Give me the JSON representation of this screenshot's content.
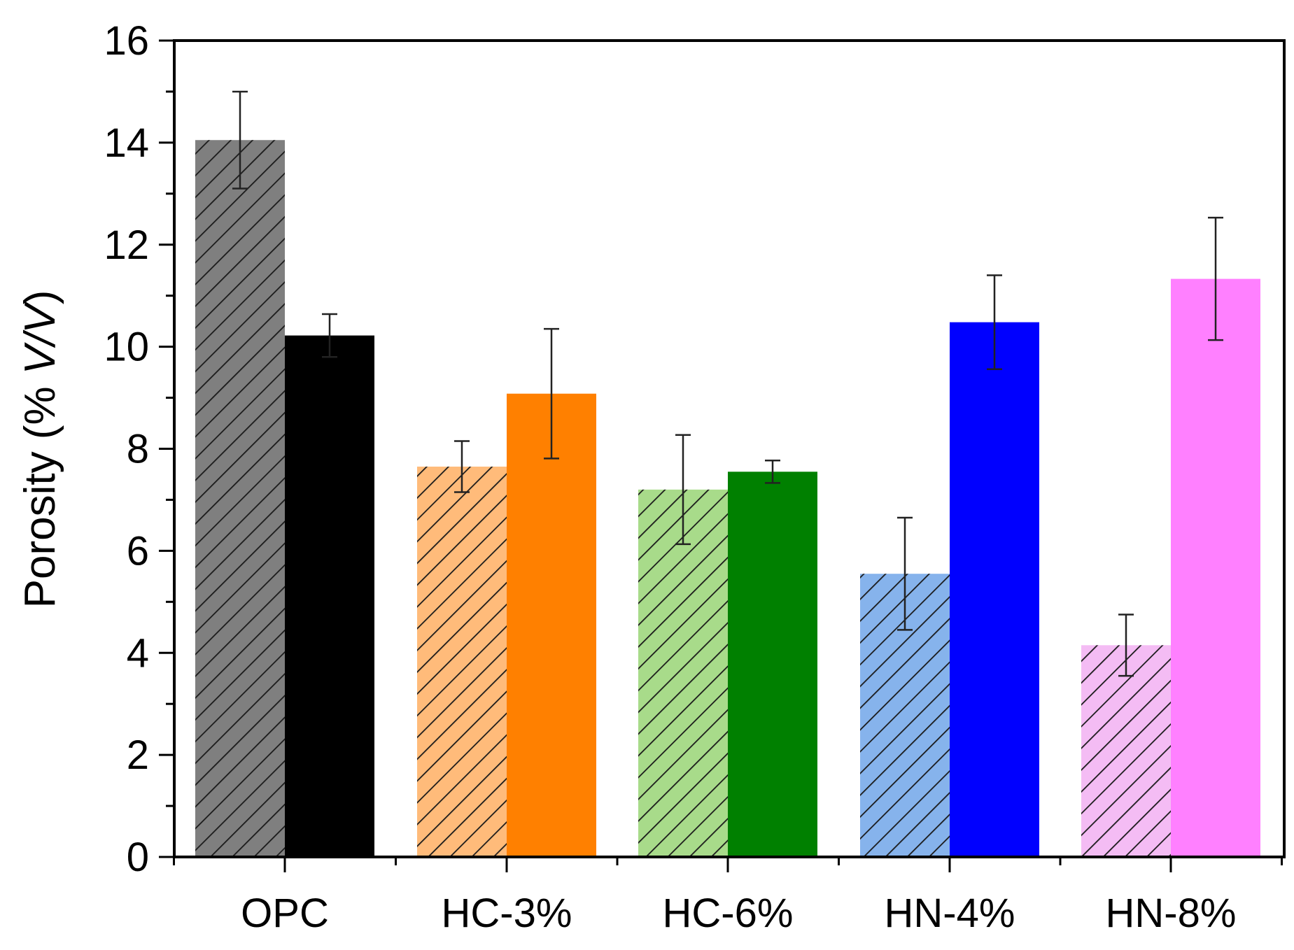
{
  "chart_data": {
    "type": "bar",
    "title": "",
    "xlabel": "",
    "ylabel": "Porosity (% V/V)",
    "ylabel_parts": {
      "prefix": "Porosity (% ",
      "italic": "V/V",
      "suffix": ")"
    },
    "ylim": [
      0,
      16
    ],
    "yticks": [
      "0",
      "2",
      "4",
      "6",
      "8",
      "10",
      "12",
      "14",
      "16"
    ],
    "yticks_minor_step": 1,
    "categories": [
      "OPC",
      "HC-3%",
      "HC-6%",
      "HN-4%",
      "HN-8%"
    ],
    "series": [
      {
        "name": "hatched",
        "style": "hatched",
        "values": [
          14.05,
          7.65,
          7.2,
          5.55,
          4.15
        ],
        "errors": [
          0.95,
          0.5,
          1.07,
          1.1,
          0.6
        ],
        "colors": [
          "#7f7f7f",
          "#ffbb7a",
          "#a8db8a",
          "#86b3ec",
          "#f4bcf4"
        ]
      },
      {
        "name": "solid",
        "style": "solid",
        "values": [
          10.22,
          9.08,
          7.55,
          10.48,
          11.33
        ],
        "errors": [
          0.42,
          1.27,
          0.22,
          0.92,
          1.2
        ],
        "colors": [
          "#000000",
          "#ff8000",
          "#008000",
          "#0000ff",
          "#ff80ff"
        ]
      }
    ],
    "grid": false,
    "legend": "none"
  }
}
